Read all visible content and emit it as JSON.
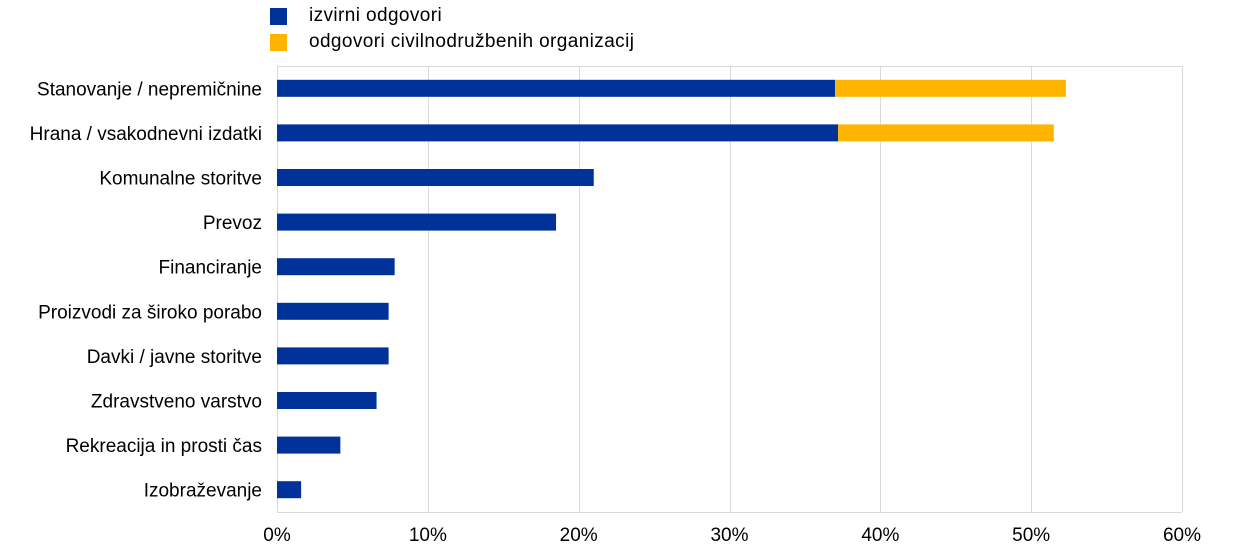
{
  "legend": [
    {
      "label": "izvirni odgovori",
      "color": "#003299"
    },
    {
      "label": "odgovori civilnodružbenih organizacij",
      "color": "#FFB400"
    }
  ],
  "chart_data": {
    "type": "bar",
    "orientation": "horizontal",
    "stacked": true,
    "categories": [
      "Stanovanje / nepremičnine",
      "Hrana / vsakodnevni izdatki",
      "Komunalne storitve",
      "Prevoz",
      "Financiranje",
      "Proizvodi za široko porabo",
      "Davki / javne storitve",
      "Zdravstveno varstvo",
      "Rekreacija in prosti čas",
      "Izobraževanje"
    ],
    "series": [
      {
        "name": "izvirni odgovori",
        "color": "#003299",
        "values": [
          37.0,
          37.2,
          21.0,
          18.5,
          7.8,
          7.4,
          7.4,
          6.6,
          4.2,
          1.6
        ]
      },
      {
        "name": "odgovori civilnodružbenih organizacij",
        "color": "#FFB400",
        "values": [
          15.3,
          14.3,
          0,
          0,
          0,
          0,
          0,
          0,
          0,
          0
        ]
      }
    ],
    "xlim": [
      0,
      60
    ],
    "xticks": [
      "0%",
      "10%",
      "20%",
      "30%",
      "40%",
      "50%",
      "60%"
    ],
    "grid": true,
    "legend_position": "top-left"
  }
}
